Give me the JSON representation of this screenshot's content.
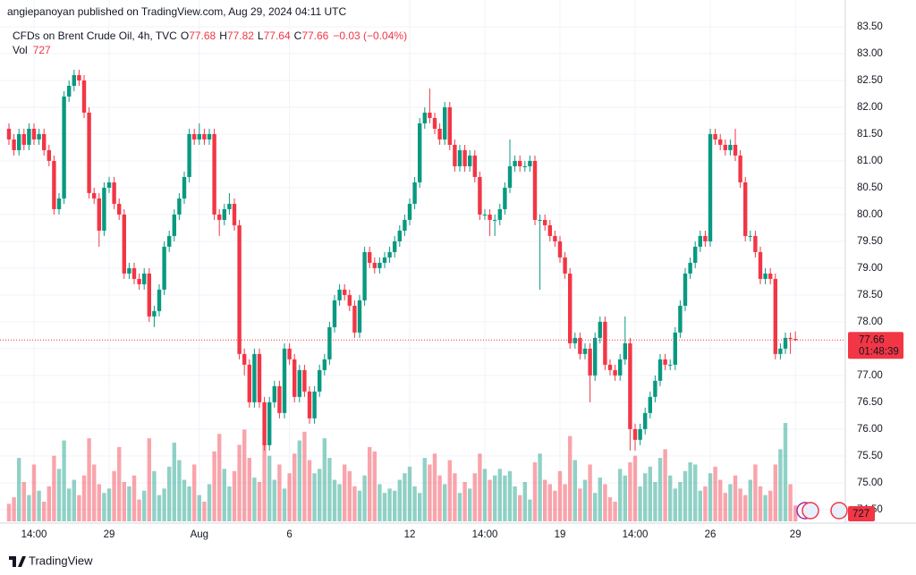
{
  "header": {
    "published": "angiepanoyan published on TradingView.com, Aug 29, 2024 04:11 UTC"
  },
  "chart_data": {
    "type": "candlestick",
    "title": "CFDs on Brent Crude Oil, 4h, TVC",
    "ohlc_labels": [
      "O",
      "H",
      "L",
      "C"
    ],
    "change_label": "−0.03 (−0.04%)",
    "volume_label": "Vol",
    "countdown": "01:48:39",
    "up_color": "#089981",
    "down_color": "#f23645",
    "grid": true,
    "ylim": [
      74.28,
      84.0
    ],
    "yticks": [
      {
        "value": 83.5,
        "label": "83.50"
      },
      {
        "value": 83,
        "label": "83.00"
      },
      {
        "value": 82.5,
        "label": "82.50"
      },
      {
        "value": 82,
        "label": "82.00"
      },
      {
        "value": 81.5,
        "label": "81.50"
      },
      {
        "value": 81,
        "label": "81.00"
      },
      {
        "value": 80.5,
        "label": "80.50"
      },
      {
        "value": 80,
        "label": "80.00"
      },
      {
        "value": 79.5,
        "label": "79.50"
      },
      {
        "value": 79,
        "label": "79.00"
      },
      {
        "value": 78.5,
        "label": "78.50"
      },
      {
        "value": 78,
        "label": "78.00"
      },
      {
        "value": 77.5,
        "label": "77.50"
      },
      {
        "value": 77,
        "label": "77.00"
      },
      {
        "value": 76.5,
        "label": "76.50"
      },
      {
        "value": 76,
        "label": "76.00"
      },
      {
        "value": 75.5,
        "label": "75.50"
      },
      {
        "value": 75,
        "label": "75.00"
      },
      {
        "value": 74.5,
        "label": "74.50"
      }
    ],
    "categories": [
      null,
      null,
      null,
      null,
      null,
      "14:00",
      null,
      null,
      null,
      null,
      null,
      null,
      null,
      null,
      null,
      null,
      null,
      null,
      null,
      null,
      "29",
      null,
      null,
      null,
      null,
      null,
      null,
      null,
      null,
      null,
      null,
      null,
      null,
      null,
      null,
      null,
      null,
      null,
      "Aug",
      null,
      null,
      null,
      null,
      null,
      null,
      null,
      null,
      null,
      null,
      null,
      null,
      null,
      null,
      null,
      null,
      null,
      "6",
      null,
      null,
      null,
      null,
      null,
      null,
      null,
      null,
      null,
      null,
      null,
      null,
      null,
      null,
      null,
      null,
      null,
      null,
      null,
      null,
      null,
      null,
      null,
      "12",
      null,
      null,
      null,
      null,
      null,
      null,
      null,
      null,
      null,
      null,
      null,
      null,
      null,
      null,
      "14:00",
      null,
      null,
      null,
      null,
      null,
      null,
      null,
      null,
      null,
      null,
      null,
      null,
      null,
      null,
      "19",
      null,
      null,
      null,
      null,
      null,
      null,
      null,
      null,
      null,
      null,
      null,
      null,
      null,
      null,
      "14:00",
      null,
      null,
      null,
      null,
      null,
      null,
      null,
      null,
      null,
      null,
      null,
      null,
      null,
      null,
      "26",
      null,
      null,
      null,
      null,
      null,
      null,
      null,
      null,
      null,
      null,
      null,
      null,
      null,
      null,
      null,
      null,
      "29"
    ],
    "open": [
      81.6,
      81.4,
      81.2,
      81.5,
      81.3,
      81.6,
      81.4,
      81.5,
      81.2,
      81.0,
      80.1,
      80.3,
      82.2,
      82.4,
      82.6,
      82.5,
      81.9,
      80.4,
      80.3,
      79.7,
      80.5,
      80.6,
      80.2,
      80.0,
      78.9,
      79.0,
      78.8,
      78.7,
      78.9,
      78.1,
      78.2,
      78.6,
      79.4,
      79.6,
      80.0,
      80.3,
      80.7,
      81.5,
      81.4,
      81.5,
      81.4,
      81.5,
      80.0,
      79.9,
      80.1,
      80.2,
      79.8,
      77.4,
      77.2,
      76.5,
      77.4,
      76.5,
      75.7,
      76.5,
      76.8,
      76.3,
      77.5,
      77.3,
      76.6,
      77.1,
      76.7,
      76.2,
      76.7,
      77.1,
      77.3,
      77.9,
      78.4,
      78.6,
      78.5,
      78.3,
      77.8,
      78.4,
      79.3,
      79.1,
      79.0,
      79.1,
      79.2,
      79.3,
      79.5,
      79.7,
      79.9,
      80.2,
      80.6,
      81.7,
      81.9,
      81.8,
      81.6,
      81.4,
      82.0,
      81.3,
      80.9,
      81.2,
      80.9,
      81.1,
      80.7,
      80.0,
      80.0,
      79.9,
      79.9,
      80.1,
      80.5,
      80.9,
      81.0,
      80.9,
      80.9,
      81.0,
      79.9,
      79.9,
      79.8,
      79.6,
      79.5,
      79.2,
      78.9,
      77.6,
      77.7,
      77.4,
      77.5,
      77.0,
      77.7,
      78.0,
      77.2,
      77.1,
      77.0,
      77.3,
      77.6,
      76.0,
      75.8,
      76.0,
      76.3,
      76.6,
      76.9,
      77.3,
      77.2,
      77.2,
      77.8,
      78.3,
      78.9,
      79.1,
      79.4,
      79.6,
      79.5,
      81.5,
      81.4,
      81.3,
      81.2,
      81.3,
      81.1,
      80.6,
      79.6,
      79.6,
      79.3,
      78.8,
      78.9,
      78.8,
      77.4,
      77.5,
      77.7,
      77.68
    ],
    "high": [
      81.7,
      81.5,
      81.6,
      81.6,
      81.7,
      81.7,
      81.6,
      81.6,
      81.3,
      81.1,
      80.4,
      82.3,
      82.5,
      82.7,
      82.7,
      82.6,
      82.0,
      80.5,
      80.4,
      80.6,
      80.7,
      80.7,
      80.3,
      80.1,
      79.1,
      79.1,
      78.9,
      79.0,
      79.0,
      78.3,
      78.7,
      79.5,
      79.7,
      80.1,
      80.4,
      80.8,
      81.6,
      81.6,
      81.7,
      81.6,
      81.6,
      81.6,
      80.1,
      80.2,
      80.4,
      80.3,
      79.9,
      77.5,
      77.3,
      77.5,
      77.5,
      76.6,
      76.6,
      76.9,
      76.9,
      77.6,
      77.6,
      77.4,
      77.2,
      77.2,
      76.8,
      76.8,
      77.2,
      77.4,
      78.0,
      78.5,
      78.7,
      78.7,
      78.6,
      78.4,
      78.5,
      79.4,
      79.4,
      79.2,
      79.2,
      79.3,
      79.4,
      79.6,
      79.8,
      80.0,
      80.3,
      80.7,
      81.8,
      82.0,
      82.35,
      81.9,
      81.7,
      82.1,
      82.1,
      81.4,
      81.3,
      81.3,
      81.2,
      81.2,
      80.8,
      80.1,
      80.1,
      80.0,
      80.2,
      80.6,
      81.4,
      81.1,
      81.1,
      81.0,
      81.1,
      81.1,
      80.0,
      80.0,
      79.9,
      79.7,
      79.6,
      79.3,
      79.0,
      77.8,
      77.8,
      77.6,
      77.6,
      77.8,
      78.1,
      78.1,
      77.3,
      77.2,
      77.4,
      78.1,
      77.7,
      76.1,
      76.1,
      76.4,
      76.7,
      77.0,
      77.4,
      77.4,
      77.3,
      77.9,
      78.4,
      79.0,
      79.2,
      79.5,
      79.7,
      79.7,
      81.6,
      81.6,
      81.5,
      81.4,
      81.4,
      81.6,
      81.2,
      80.7,
      79.7,
      79.7,
      79.4,
      79.0,
      79.0,
      78.9,
      77.6,
      77.8,
      77.8,
      77.82
    ],
    "low": [
      81.3,
      81.1,
      81.1,
      81.2,
      81.2,
      81.3,
      81.3,
      81.1,
      80.9,
      80.0,
      80.0,
      80.2,
      82.1,
      82.3,
      82.4,
      81.8,
      80.3,
      80.2,
      79.4,
      79.6,
      80.4,
      80.1,
      79.9,
      78.8,
      78.8,
      78.7,
      78.6,
      78.6,
      78.0,
      77.9,
      78.1,
      78.5,
      79.3,
      79.5,
      79.9,
      80.2,
      80.6,
      81.3,
      81.3,
      81.3,
      81.3,
      79.9,
      79.6,
      79.8,
      80.0,
      79.7,
      77.3,
      77.0,
      76.4,
      76.4,
      76.4,
      75.6,
      75.6,
      76.4,
      76.2,
      76.2,
      77.2,
      76.5,
      76.5,
      76.6,
      76.1,
      76.1,
      76.6,
      77.0,
      77.2,
      77.8,
      78.3,
      78.4,
      78.2,
      77.7,
      77.7,
      78.3,
      79.0,
      78.9,
      78.9,
      79.0,
      79.1,
      79.2,
      79.4,
      79.6,
      79.8,
      80.1,
      80.5,
      81.6,
      81.7,
      81.5,
      81.3,
      81.3,
      81.2,
      80.8,
      80.8,
      80.8,
      80.8,
      80.6,
      79.9,
      79.9,
      79.6,
      79.6,
      79.8,
      80.0,
      80.4,
      80.8,
      80.8,
      80.8,
      80.8,
      79.8,
      78.6,
      79.7,
      79.5,
      79.4,
      79.1,
      78.8,
      77.5,
      77.5,
      77.3,
      77.3,
      76.5,
      76.9,
      77.6,
      77.1,
      77.0,
      76.9,
      76.9,
      77.2,
      75.6,
      75.6,
      75.7,
      75.9,
      76.2,
      76.5,
      76.8,
      77.1,
      77.1,
      77.1,
      77.7,
      78.2,
      78.8,
      79.0,
      79.3,
      79.4,
      79.4,
      81.3,
      81.2,
      81.1,
      81.1,
      81.0,
      80.5,
      79.5,
      79.5,
      79.2,
      78.7,
      78.7,
      78.7,
      77.3,
      77.3,
      77.4,
      77.4,
      77.64
    ],
    "close": [
      81.4,
      81.2,
      81.5,
      81.3,
      81.6,
      81.4,
      81.5,
      81.2,
      81.0,
      80.1,
      80.3,
      82.2,
      82.4,
      82.6,
      82.5,
      81.9,
      80.4,
      80.3,
      79.7,
      80.5,
      80.6,
      80.2,
      80.0,
      78.9,
      79.0,
      78.8,
      78.7,
      78.9,
      78.1,
      78.2,
      78.6,
      79.4,
      79.6,
      80.0,
      80.3,
      80.7,
      81.5,
      81.4,
      81.5,
      81.4,
      81.5,
      80.0,
      79.9,
      80.1,
      80.2,
      79.8,
      77.4,
      77.2,
      76.5,
      77.4,
      76.5,
      75.7,
      76.5,
      76.8,
      76.3,
      77.5,
      77.3,
      76.6,
      77.1,
      76.7,
      76.2,
      76.7,
      77.1,
      77.3,
      77.9,
      78.4,
      78.6,
      78.5,
      78.3,
      77.8,
      78.4,
      79.3,
      79.1,
      79.0,
      79.1,
      79.2,
      79.3,
      79.5,
      79.7,
      79.9,
      80.2,
      80.6,
      81.7,
      81.9,
      81.8,
      81.6,
      81.4,
      82.0,
      81.3,
      80.9,
      81.2,
      80.9,
      81.1,
      80.7,
      80.0,
      80.0,
      79.9,
      79.9,
      80.1,
      80.5,
      80.9,
      81.0,
      80.9,
      80.9,
      81.0,
      79.9,
      79.9,
      79.8,
      79.6,
      79.5,
      79.2,
      78.9,
      77.6,
      77.7,
      77.4,
      77.5,
      77.0,
      77.7,
      78.0,
      77.2,
      77.1,
      77.0,
      77.3,
      77.6,
      76.0,
      75.8,
      76.0,
      76.3,
      76.6,
      76.9,
      77.3,
      77.2,
      77.2,
      77.8,
      78.3,
      78.9,
      79.1,
      79.4,
      79.6,
      79.5,
      81.5,
      81.4,
      81.3,
      81.2,
      81.3,
      81.1,
      80.6,
      79.6,
      79.6,
      79.3,
      78.8,
      78.9,
      78.8,
      77.4,
      77.5,
      77.7,
      77.68,
      77.66
    ],
    "volume": [
      800,
      1100,
      2900,
      1800,
      1200,
      2600,
      1400,
      900,
      1600,
      3000,
      2400,
      3700,
      1500,
      1900,
      1200,
      2100,
      3800,
      2600,
      1700,
      1300,
      1500,
      2300,
      3400,
      1800,
      1600,
      2100,
      1000,
      1400,
      3800,
      2300,
      1200,
      1500,
      2500,
      3600,
      2800,
      1900,
      1600,
      2600,
      1200,
      900,
      1700,
      3200,
      4000,
      2400,
      1600,
      2300,
      3500,
      4200,
      2900,
      2000,
      1800,
      3600,
      3000,
      1900,
      2600,
      1500,
      2200,
      3100,
      3700,
      4100,
      2800,
      2200,
      2400,
      3800,
      2900,
      1900,
      1700,
      2600,
      2300,
      1600,
      1400,
      2100,
      3400,
      3200,
      1700,
      1300,
      1500,
      1400,
      1900,
      2200,
      2500,
      1600,
      1300,
      2900,
      2600,
      3100,
      2100,
      1700,
      2800,
      2200,
      1300,
      1800,
      1500,
      2200,
      3100,
      2400,
      1900,
      2100,
      2400,
      2100,
      2300,
      1600,
      1200,
      1800,
      1000,
      2700,
      3100,
      1900,
      1700,
      1400,
      2300,
      1700,
      3900,
      2800,
      1500,
      1900,
      2600,
      1300,
      2000,
      1700,
      1100,
      900,
      2400,
      2100,
      2700,
      3000,
      1600,
      2200,
      2500,
      1800,
      2900,
      3300,
      2100,
      1500,
      1800,
      2300,
      2700,
      2600,
      1400,
      1600,
      2200,
      2500,
      1900,
      1300,
      1700,
      2100,
      1500,
      1200,
      1900,
      2600,
      1600,
      1200,
      1400,
      2600,
      3300,
      4500,
      1700,
      727
    ]
  },
  "footer": {
    "brand": "TradingView"
  }
}
